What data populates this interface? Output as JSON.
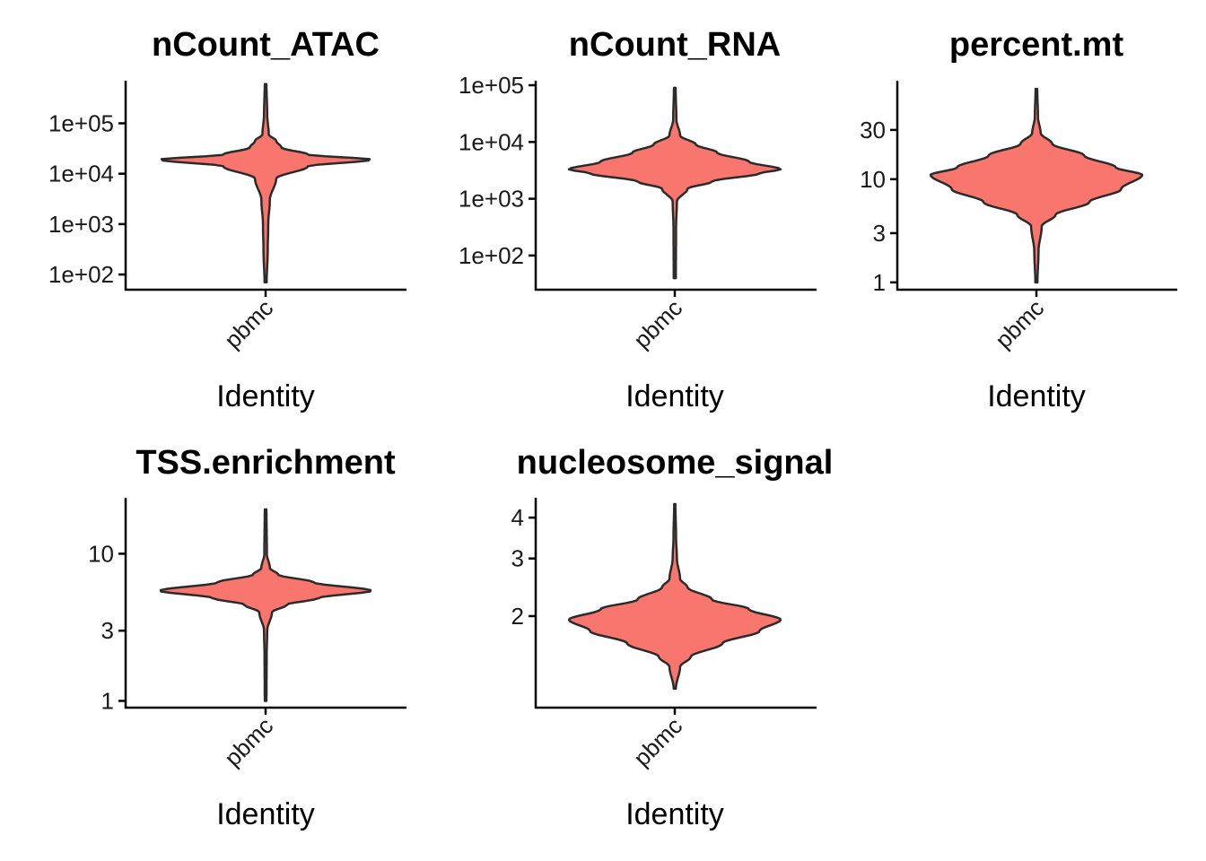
{
  "colors": {
    "violin_fill": "#F8766D",
    "violin_stroke": "#2b2b2b",
    "axis": "#000000"
  },
  "chart_data": [
    {
      "type": "violin",
      "title": "nCount_ATAC",
      "xlabel": "Identity",
      "categories": [
        "pbmc"
      ],
      "y_scale": "log10",
      "y_ticks": [
        100,
        1000,
        10000,
        100000
      ],
      "y_tick_labels": [
        "1e+02",
        "1e+03",
        "1e+04",
        "1e+05"
      ],
      "ylim": [
        50,
        700000
      ],
      "y_min": 70,
      "y_max": 600000,
      "density_profile": [
        [
          70,
          0.01
        ],
        [
          300,
          0.02
        ],
        [
          1000,
          0.025
        ],
        [
          3000,
          0.04
        ],
        [
          8000,
          0.1
        ],
        [
          14000,
          0.4
        ],
        [
          19000,
          1.0
        ],
        [
          24000,
          0.4
        ],
        [
          33000,
          0.15
        ],
        [
          45000,
          0.1
        ],
        [
          60000,
          0.03
        ],
        [
          150000,
          0.015
        ],
        [
          600000,
          0.008
        ]
      ]
    },
    {
      "type": "violin",
      "title": "nCount_RNA",
      "xlabel": "Identity",
      "categories": [
        "pbmc"
      ],
      "y_scale": "log10",
      "y_ticks": [
        100,
        1000,
        10000,
        100000
      ],
      "y_tick_labels": [
        "1e+02",
        "1e+03",
        "1e+04",
        "1e+05"
      ],
      "ylim": [
        25,
        120000
      ],
      "y_min": 40,
      "y_max": 90000,
      "density_profile": [
        [
          40,
          0.01
        ],
        [
          300,
          0.012
        ],
        [
          900,
          0.02
        ],
        [
          1500,
          0.12
        ],
        [
          2000,
          0.35
        ],
        [
          2800,
          0.8
        ],
        [
          3300,
          1.0
        ],
        [
          4500,
          0.7
        ],
        [
          6500,
          0.4
        ],
        [
          9000,
          0.2
        ],
        [
          13000,
          0.05
        ],
        [
          25000,
          0.015
        ],
        [
          90000,
          0.008
        ]
      ]
    },
    {
      "type": "violin",
      "title": "percent.mt",
      "xlabel": "Identity",
      "categories": [
        "pbmc"
      ],
      "y_scale": "log10",
      "y_ticks": [
        1,
        3,
        10,
        30
      ],
      "y_tick_labels": [
        "1",
        "3",
        "10",
        "30"
      ],
      "ylim": [
        0.85,
        90
      ],
      "y_min": 1,
      "y_max": 75,
      "density_profile": [
        [
          1,
          0.01
        ],
        [
          2,
          0.02
        ],
        [
          3.5,
          0.05
        ],
        [
          4.5,
          0.18
        ],
        [
          6,
          0.5
        ],
        [
          8,
          0.8
        ],
        [
          11,
          1.0
        ],
        [
          13,
          0.75
        ],
        [
          17,
          0.45
        ],
        [
          22,
          0.15
        ],
        [
          28,
          0.04
        ],
        [
          40,
          0.015
        ],
        [
          75,
          0.008
        ]
      ]
    },
    {
      "type": "violin",
      "title": "TSS.enrichment",
      "xlabel": "Identity",
      "categories": [
        "pbmc"
      ],
      "y_scale": "log10",
      "y_ticks": [
        1,
        3,
        10
      ],
      "y_tick_labels": [
        "1",
        "3",
        "10"
      ],
      "ylim": [
        0.9,
        24
      ],
      "y_min": 1,
      "y_max": 20,
      "density_profile": [
        [
          1,
          0.008
        ],
        [
          2,
          0.01
        ],
        [
          3,
          0.015
        ],
        [
          4,
          0.06
        ],
        [
          4.5,
          0.2
        ],
        [
          5,
          0.5
        ],
        [
          5.6,
          1.0
        ],
        [
          6.4,
          0.45
        ],
        [
          7.2,
          0.12
        ],
        [
          8,
          0.04
        ],
        [
          10,
          0.012
        ],
        [
          20,
          0.008
        ]
      ]
    },
    {
      "type": "violin",
      "title": "nucleosome_signal",
      "xlabel": "Identity",
      "categories": [
        "pbmc"
      ],
      "y_scale": "log10",
      "y_ticks": [
        2,
        3,
        4
      ],
      "y_tick_labels": [
        "2",
        "3",
        "4"
      ],
      "ylim": [
        1.05,
        4.6
      ],
      "y_min": 1.2,
      "y_max": 4.4,
      "density_profile": [
        [
          1.2,
          0.01
        ],
        [
          1.4,
          0.05
        ],
        [
          1.5,
          0.15
        ],
        [
          1.65,
          0.45
        ],
        [
          1.8,
          0.8
        ],
        [
          1.95,
          1.0
        ],
        [
          2.1,
          0.7
        ],
        [
          2.25,
          0.35
        ],
        [
          2.45,
          0.12
        ],
        [
          2.6,
          0.05
        ],
        [
          3,
          0.02
        ],
        [
          3.5,
          0.012
        ],
        [
          4.4,
          0.006
        ]
      ]
    }
  ]
}
